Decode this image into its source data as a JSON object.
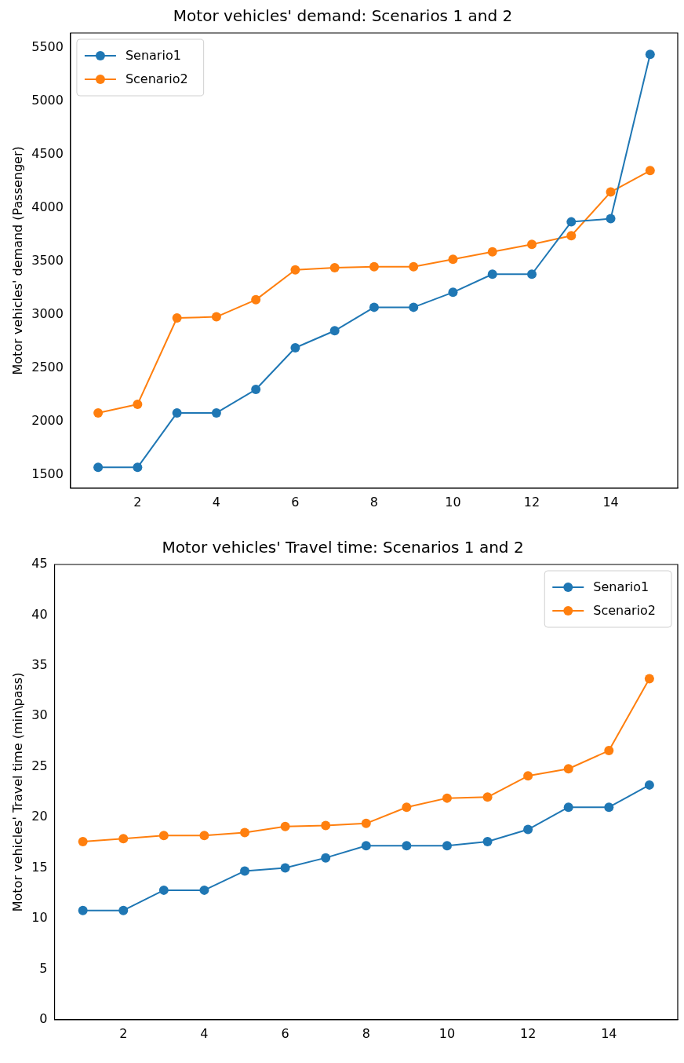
{
  "chart_data": [
    {
      "type": "line",
      "title": "Motor vehicles' demand: Scenarios 1 and 2",
      "ylabel": "Motor vehicles' demand (Passenger)",
      "x": [
        1,
        2,
        3,
        4,
        5,
        6,
        7,
        8,
        9,
        10,
        11,
        12,
        13,
        14,
        15
      ],
      "series": [
        {
          "name": "Senario1",
          "color": "#1f77b4",
          "values": [
            1570,
            1570,
            2080,
            2080,
            2300,
            2690,
            2850,
            3070,
            3070,
            3210,
            3380,
            3380,
            3870,
            3900,
            5440
          ]
        },
        {
          "name": "Scenario2",
          "color": "#ff7f0e",
          "values": [
            2080,
            2160,
            2970,
            2980,
            3140,
            3420,
            3440,
            3450,
            3450,
            3520,
            3590,
            3660,
            3740,
            4150,
            4350
          ]
        }
      ],
      "xlim": [
        0.3,
        15.7
      ],
      "xticks": [
        2,
        4,
        6,
        8,
        10,
        12,
        14
      ],
      "ylim": [
        1375,
        5640
      ],
      "yticks": [
        1500,
        2000,
        2500,
        3000,
        3500,
        4000,
        4500,
        5000,
        5500
      ],
      "grid": false,
      "legend": "top left",
      "marker": "circle",
      "line_style": "solid"
    },
    {
      "type": "line",
      "title": "Motor vehicles' Travel time: Scenarios 1 and 2",
      "ylabel": "Motor vehicles' Travel time (min\\pass)",
      "x": [
        1,
        2,
        3,
        4,
        5,
        6,
        7,
        8,
        9,
        10,
        11,
        12,
        13,
        14,
        15
      ],
      "series": [
        {
          "name": "Senario1",
          "color": "#1f77b4",
          "values": [
            10.8,
            10.8,
            12.8,
            12.8,
            14.7,
            15.0,
            16.0,
            17.2,
            17.2,
            17.2,
            17.6,
            18.8,
            21.0,
            21.0,
            23.2
          ]
        },
        {
          "name": "Scenario2",
          "color": "#ff7f0e",
          "values": [
            17.6,
            17.9,
            18.2,
            18.2,
            18.5,
            19.1,
            19.2,
            19.4,
            21.0,
            21.9,
            22.0,
            24.1,
            24.8,
            26.6,
            33.7
          ]
        }
      ],
      "xlim": [
        0.3,
        15.7
      ],
      "xticks": [
        2,
        4,
        6,
        8,
        10,
        12,
        14
      ],
      "ylim": [
        0,
        45
      ],
      "yticks": [
        0,
        5,
        10,
        15,
        20,
        25,
        30,
        35,
        40,
        45
      ],
      "grid": false,
      "legend": "top right",
      "marker": "circle",
      "line_style": "solid"
    }
  ]
}
